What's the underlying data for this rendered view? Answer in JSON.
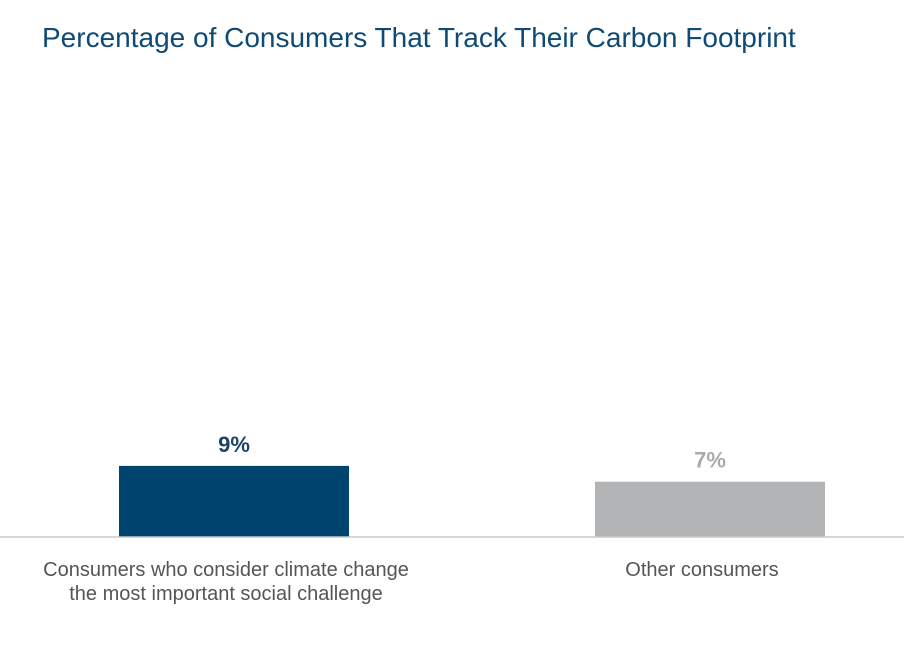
{
  "chart_data": {
    "type": "bar",
    "title": "Percentage of Consumers That Track Their Carbon Footprint",
    "categories": [
      [
        "Consumers who consider climate change",
        "the most important social challenge"
      ],
      [
        "Other consumers"
      ]
    ],
    "values": [
      9,
      7
    ],
    "value_labels": [
      "9%",
      "7%"
    ],
    "colors": [
      "#004570",
      "#b3b4b6"
    ],
    "label_colors": [
      "#1d4266",
      "#a9aaac"
    ],
    "ylim": [
      0,
      100
    ],
    "grid": false,
    "legend": "none"
  }
}
